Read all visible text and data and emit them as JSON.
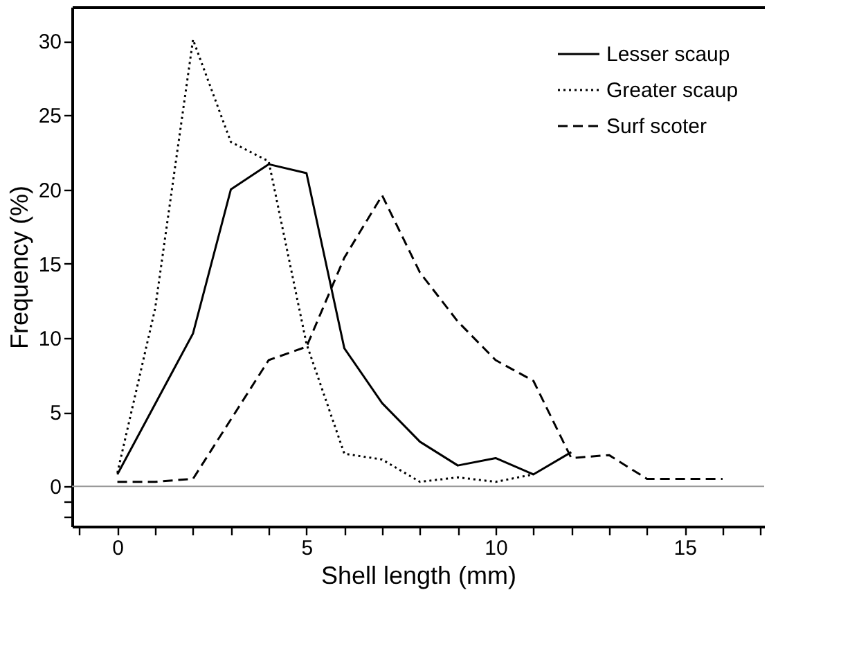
{
  "chart_data": {
    "type": "line",
    "xlabel": "Shell length (mm)",
    "ylabel": "Frequency (%)",
    "xlim": [
      -1.2,
      17.1
    ],
    "ylim": [
      -2.7,
      32.3
    ],
    "xticks": [
      {
        "value": -1,
        "label": null
      },
      0,
      {
        "value": 1,
        "label": null
      },
      {
        "value": 2,
        "label": null
      },
      {
        "value": 3,
        "label": null
      },
      {
        "value": 4,
        "label": null
      },
      5,
      {
        "value": 6,
        "label": null
      },
      {
        "value": 7,
        "label": null
      },
      {
        "value": 8,
        "label": null
      },
      {
        "value": 9,
        "label": null
      },
      10,
      {
        "value": 11,
        "label": null
      },
      {
        "value": 12,
        "label": null
      },
      {
        "value": 13,
        "label": null
      },
      {
        "value": 14,
        "label": null
      },
      15,
      {
        "value": 16,
        "label": null
      },
      {
        "value": 17,
        "label": null
      }
    ],
    "yticks": [
      {
        "value": -2,
        "label": null
      },
      {
        "value": -1,
        "label": null
      },
      0,
      5,
      10,
      15,
      20,
      25,
      30
    ],
    "series": [
      {
        "name": "Lesser scaup",
        "color": "#000000",
        "line_style": "solid",
        "x": [
          0,
          2,
          3,
          4,
          5,
          6,
          7,
          8,
          9,
          10,
          11,
          12
        ],
        "values": [
          0.8,
          10.3,
          20.0,
          21.7,
          21.1,
          9.3,
          5.6,
          3.0,
          1.4,
          1.9,
          0.8,
          2.3
        ]
      },
      {
        "name": "Greater scaup",
        "color": "#000000",
        "line_style": "dotted",
        "x": [
          0,
          1,
          2,
          3,
          4,
          5,
          6,
          7,
          8,
          9,
          10,
          11
        ],
        "values": [
          0.9,
          12,
          30.1,
          23.2,
          21.9,
          9.6,
          2.2,
          1.8,
          0.3,
          0.6,
          0.3,
          0.8
        ]
      },
      {
        "name": "Surf scoter",
        "color": "#000000",
        "line_style": "dashed",
        "x": [
          0,
          1,
          2,
          4,
          5,
          6,
          7,
          8,
          9,
          10,
          11,
          12,
          13,
          14,
          15,
          16
        ],
        "values": [
          0.3,
          0.3,
          0.5,
          8.5,
          9.4,
          15.4,
          19.6,
          14.4,
          11.1,
          8.5,
          7.1,
          1.9,
          2.1,
          0.5,
          0.5,
          0.5
        ]
      }
    ],
    "ref_lines": [
      {
        "axis": "y",
        "value": 0,
        "label": null,
        "color": "#999999",
        "line_style": "solid"
      }
    ],
    "legend": "top right",
    "grid": false,
    "marker": "none"
  }
}
